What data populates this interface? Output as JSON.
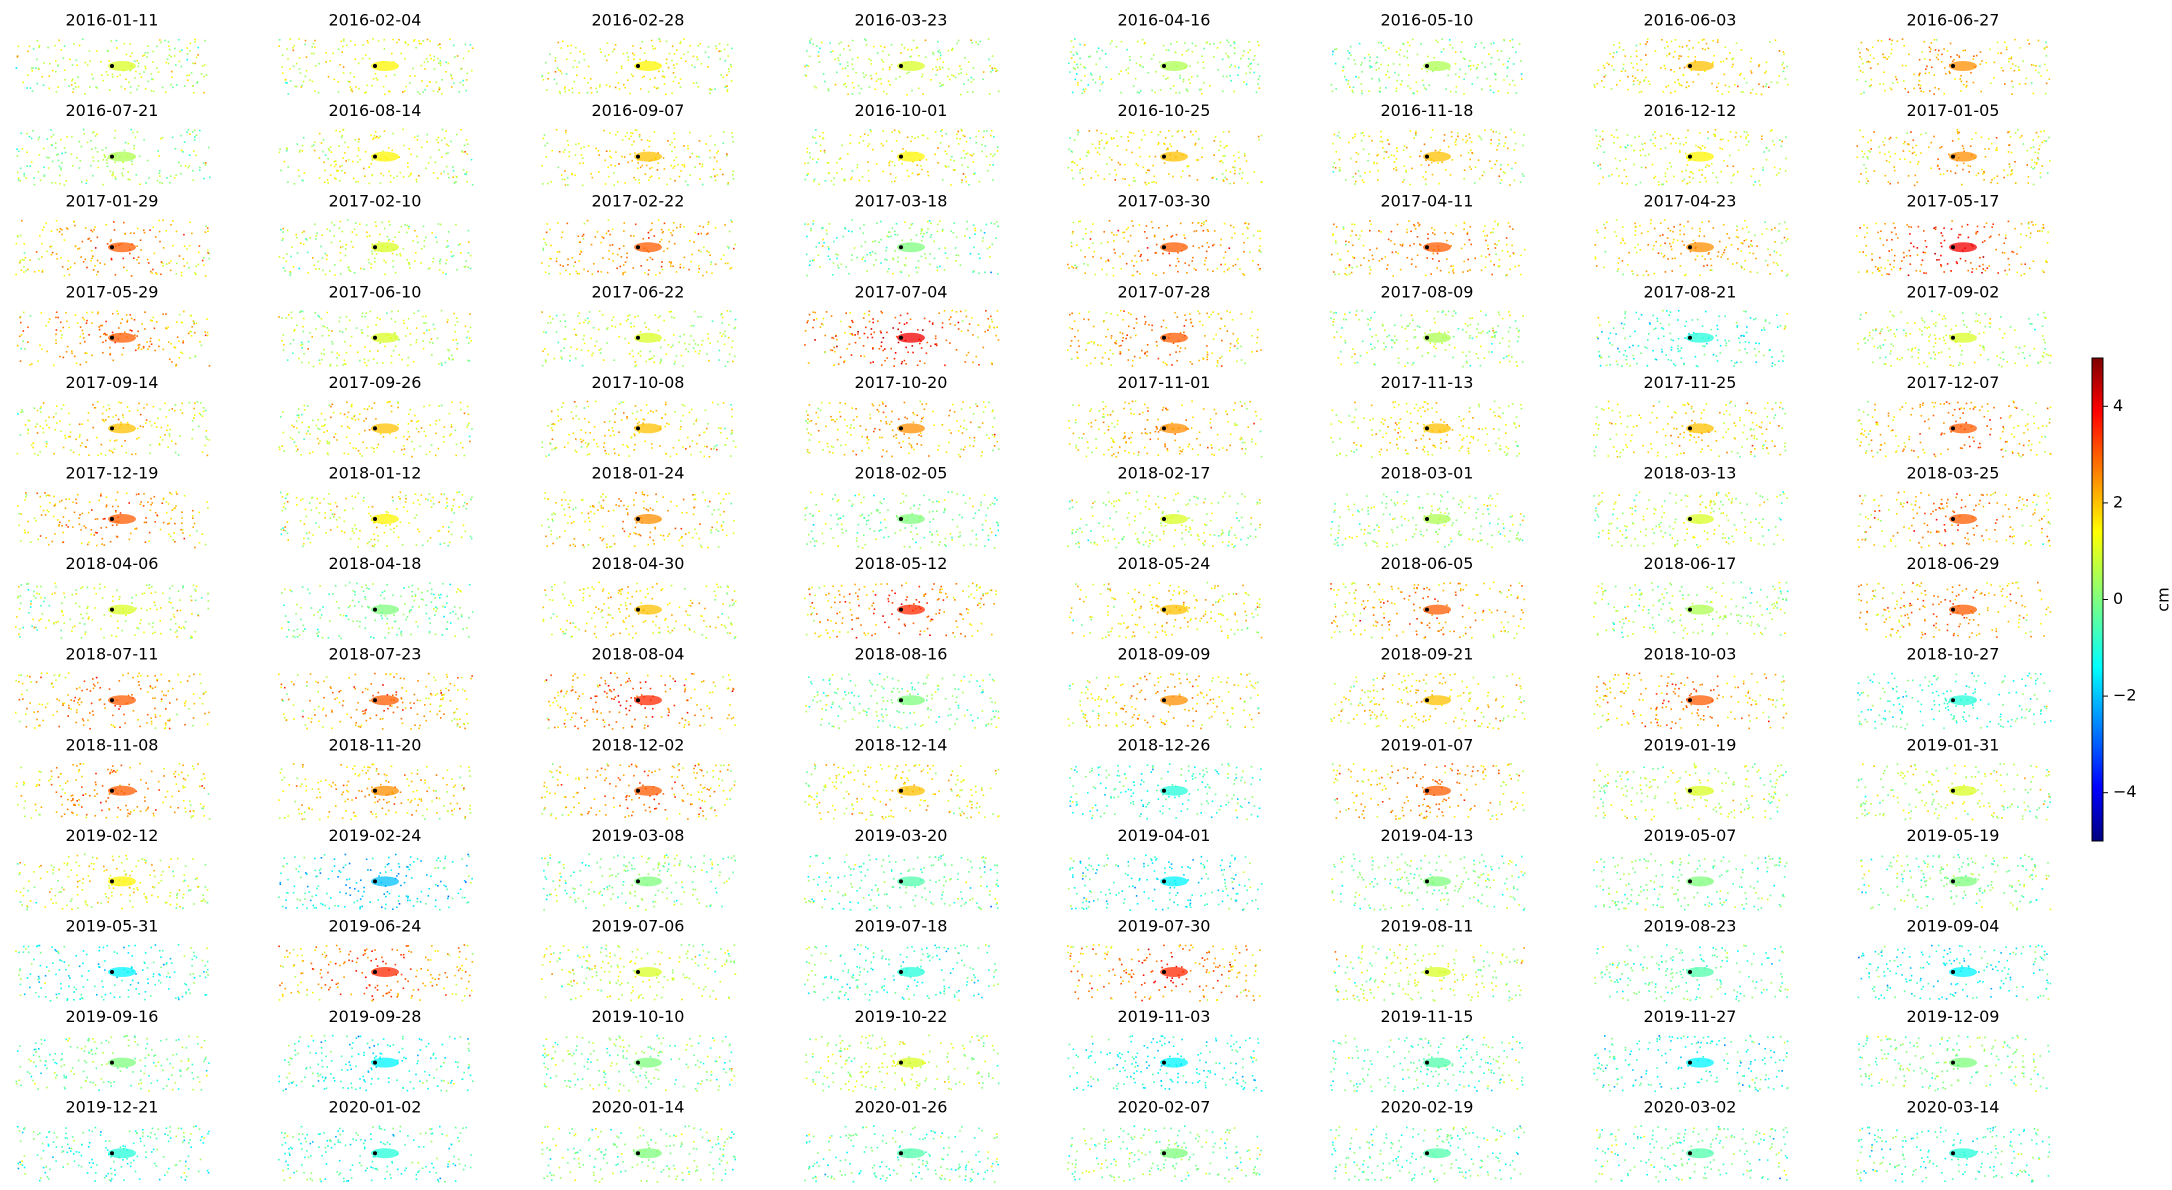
{
  "chart_data": {
    "type": "scatter_grid",
    "panels": [
      {
        "title": "2016-01-11",
        "value": 1
      },
      {
        "title": "2016-02-04",
        "value": 1.5
      },
      {
        "title": "2016-02-28",
        "value": 1.5
      },
      {
        "title": "2016-03-23",
        "value": 1
      },
      {
        "title": "2016-04-16",
        "value": 0.5
      },
      {
        "title": "2016-05-10",
        "value": 0.5
      },
      {
        "title": "2016-06-03",
        "value": 2
      },
      {
        "title": "2016-06-27",
        "value": 2.5
      },
      {
        "title": "2016-07-21",
        "value": 0.5
      },
      {
        "title": "2016-08-14",
        "value": 1.5
      },
      {
        "title": "2016-09-07",
        "value": 2
      },
      {
        "title": "2016-10-01",
        "value": 1.5
      },
      {
        "title": "2016-10-25",
        "value": 2
      },
      {
        "title": "2016-11-18",
        "value": 2
      },
      {
        "title": "2016-12-12",
        "value": 1.5
      },
      {
        "title": "2017-01-05",
        "value": 2.5
      },
      {
        "title": "2017-01-29",
        "value": 3
      },
      {
        "title": "2017-02-10",
        "value": 1
      },
      {
        "title": "2017-02-22",
        "value": 3
      },
      {
        "title": "2017-03-18",
        "value": 0
      },
      {
        "title": "2017-03-30",
        "value": 3
      },
      {
        "title": "2017-04-11",
        "value": 3
      },
      {
        "title": "2017-04-23",
        "value": 2.5
      },
      {
        "title": "2017-05-17",
        "value": 4
      },
      {
        "title": "2017-05-29",
        "value": 3
      },
      {
        "title": "2017-06-10",
        "value": 1
      },
      {
        "title": "2017-06-22",
        "value": 1
      },
      {
        "title": "2017-07-04",
        "value": 4
      },
      {
        "title": "2017-07-28",
        "value": 3
      },
      {
        "title": "2017-08-09",
        "value": 0.5
      },
      {
        "title": "2017-08-21",
        "value": -1
      },
      {
        "title": "2017-09-02",
        "value": 1
      },
      {
        "title": "2017-09-14",
        "value": 2
      },
      {
        "title": "2017-09-26",
        "value": 2
      },
      {
        "title": "2017-10-08",
        "value": 2
      },
      {
        "title": "2017-10-20",
        "value": 2.5
      },
      {
        "title": "2017-11-01",
        "value": 2.5
      },
      {
        "title": "2017-11-13",
        "value": 2
      },
      {
        "title": "2017-11-25",
        "value": 2
      },
      {
        "title": "2017-12-07",
        "value": 3
      },
      {
        "title": "2017-12-19",
        "value": 3
      },
      {
        "title": "2018-01-12",
        "value": 1.5
      },
      {
        "title": "2018-01-24",
        "value": 2.5
      },
      {
        "title": "2018-02-05",
        "value": 0
      },
      {
        "title": "2018-02-17",
        "value": 1
      },
      {
        "title": "2018-03-01",
        "value": 0.5
      },
      {
        "title": "2018-03-13",
        "value": 1
      },
      {
        "title": "2018-03-25",
        "value": 3
      },
      {
        "title": "2018-04-06",
        "value": 1
      },
      {
        "title": "2018-04-18",
        "value": 0
      },
      {
        "title": "2018-04-30",
        "value": 2
      },
      {
        "title": "2018-05-12",
        "value": 3.5
      },
      {
        "title": "2018-05-24",
        "value": 2
      },
      {
        "title": "2018-06-05",
        "value": 3
      },
      {
        "title": "2018-06-17",
        "value": 0.5
      },
      {
        "title": "2018-06-29",
        "value": 3
      },
      {
        "title": "2018-07-11",
        "value": 3
      },
      {
        "title": "2018-07-23",
        "value": 3
      },
      {
        "title": "2018-08-04",
        "value": 3.5
      },
      {
        "title": "2018-08-16",
        "value": 0
      },
      {
        "title": "2018-09-09",
        "value": 2.5
      },
      {
        "title": "2018-09-21",
        "value": 2
      },
      {
        "title": "2018-10-03",
        "value": 3
      },
      {
        "title": "2018-10-27",
        "value": -1
      },
      {
        "title": "2018-11-08",
        "value": 3
      },
      {
        "title": "2018-11-20",
        "value": 2.5
      },
      {
        "title": "2018-12-02",
        "value": 3
      },
      {
        "title": "2018-12-14",
        "value": 2
      },
      {
        "title": "2018-12-26",
        "value": -1
      },
      {
        "title": "2019-01-07",
        "value": 3
      },
      {
        "title": "2019-01-19",
        "value": 1
      },
      {
        "title": "2019-01-31",
        "value": 1
      },
      {
        "title": "2019-02-12",
        "value": 1.5
      },
      {
        "title": "2019-02-24",
        "value": -2
      },
      {
        "title": "2019-03-08",
        "value": 0
      },
      {
        "title": "2019-03-20",
        "value": -0.5
      },
      {
        "title": "2019-04-01",
        "value": -1.5
      },
      {
        "title": "2019-04-13",
        "value": 0
      },
      {
        "title": "2019-05-07",
        "value": 0
      },
      {
        "title": "2019-05-19",
        "value": 0
      },
      {
        "title": "2019-05-31",
        "value": -1.5
      },
      {
        "title": "2019-06-24",
        "value": 3.5
      },
      {
        "title": "2019-07-06",
        "value": 1
      },
      {
        "title": "2019-07-18",
        "value": -1
      },
      {
        "title": "2019-07-30",
        "value": 3.5
      },
      {
        "title": "2019-08-11",
        "value": 1
      },
      {
        "title": "2019-08-23",
        "value": -0.5
      },
      {
        "title": "2019-09-04",
        "value": -1.5
      },
      {
        "title": "2019-09-16",
        "value": 0
      },
      {
        "title": "2019-09-28",
        "value": -1.5
      },
      {
        "title": "2019-10-10",
        "value": 0
      },
      {
        "title": "2019-10-22",
        "value": 1
      },
      {
        "title": "2019-11-03",
        "value": -1.5
      },
      {
        "title": "2019-11-15",
        "value": -0.5
      },
      {
        "title": "2019-11-27",
        "value": -1.5
      },
      {
        "title": "2019-12-09",
        "value": 0
      },
      {
        "title": "2019-12-21",
        "value": -1
      },
      {
        "title": "2020-01-02",
        "value": -1
      },
      {
        "title": "2020-01-14",
        "value": 0
      },
      {
        "title": "2020-01-26",
        "value": -0.5
      },
      {
        "title": "2020-02-07",
        "value": 0
      },
      {
        "title": "2020-02-19",
        "value": -0.5
      },
      {
        "title": "2020-03-02",
        "value": -0.5
      },
      {
        "title": "2020-03-14",
        "value": -1
      }
    ],
    "colorbar": {
      "label": "cm",
      "lim": [
        -5,
        5
      ],
      "ticks": [
        {
          "value": -4,
          "label": "−4"
        },
        {
          "value": -2,
          "label": "−2"
        },
        0,
        2,
        4
      ]
    }
  }
}
